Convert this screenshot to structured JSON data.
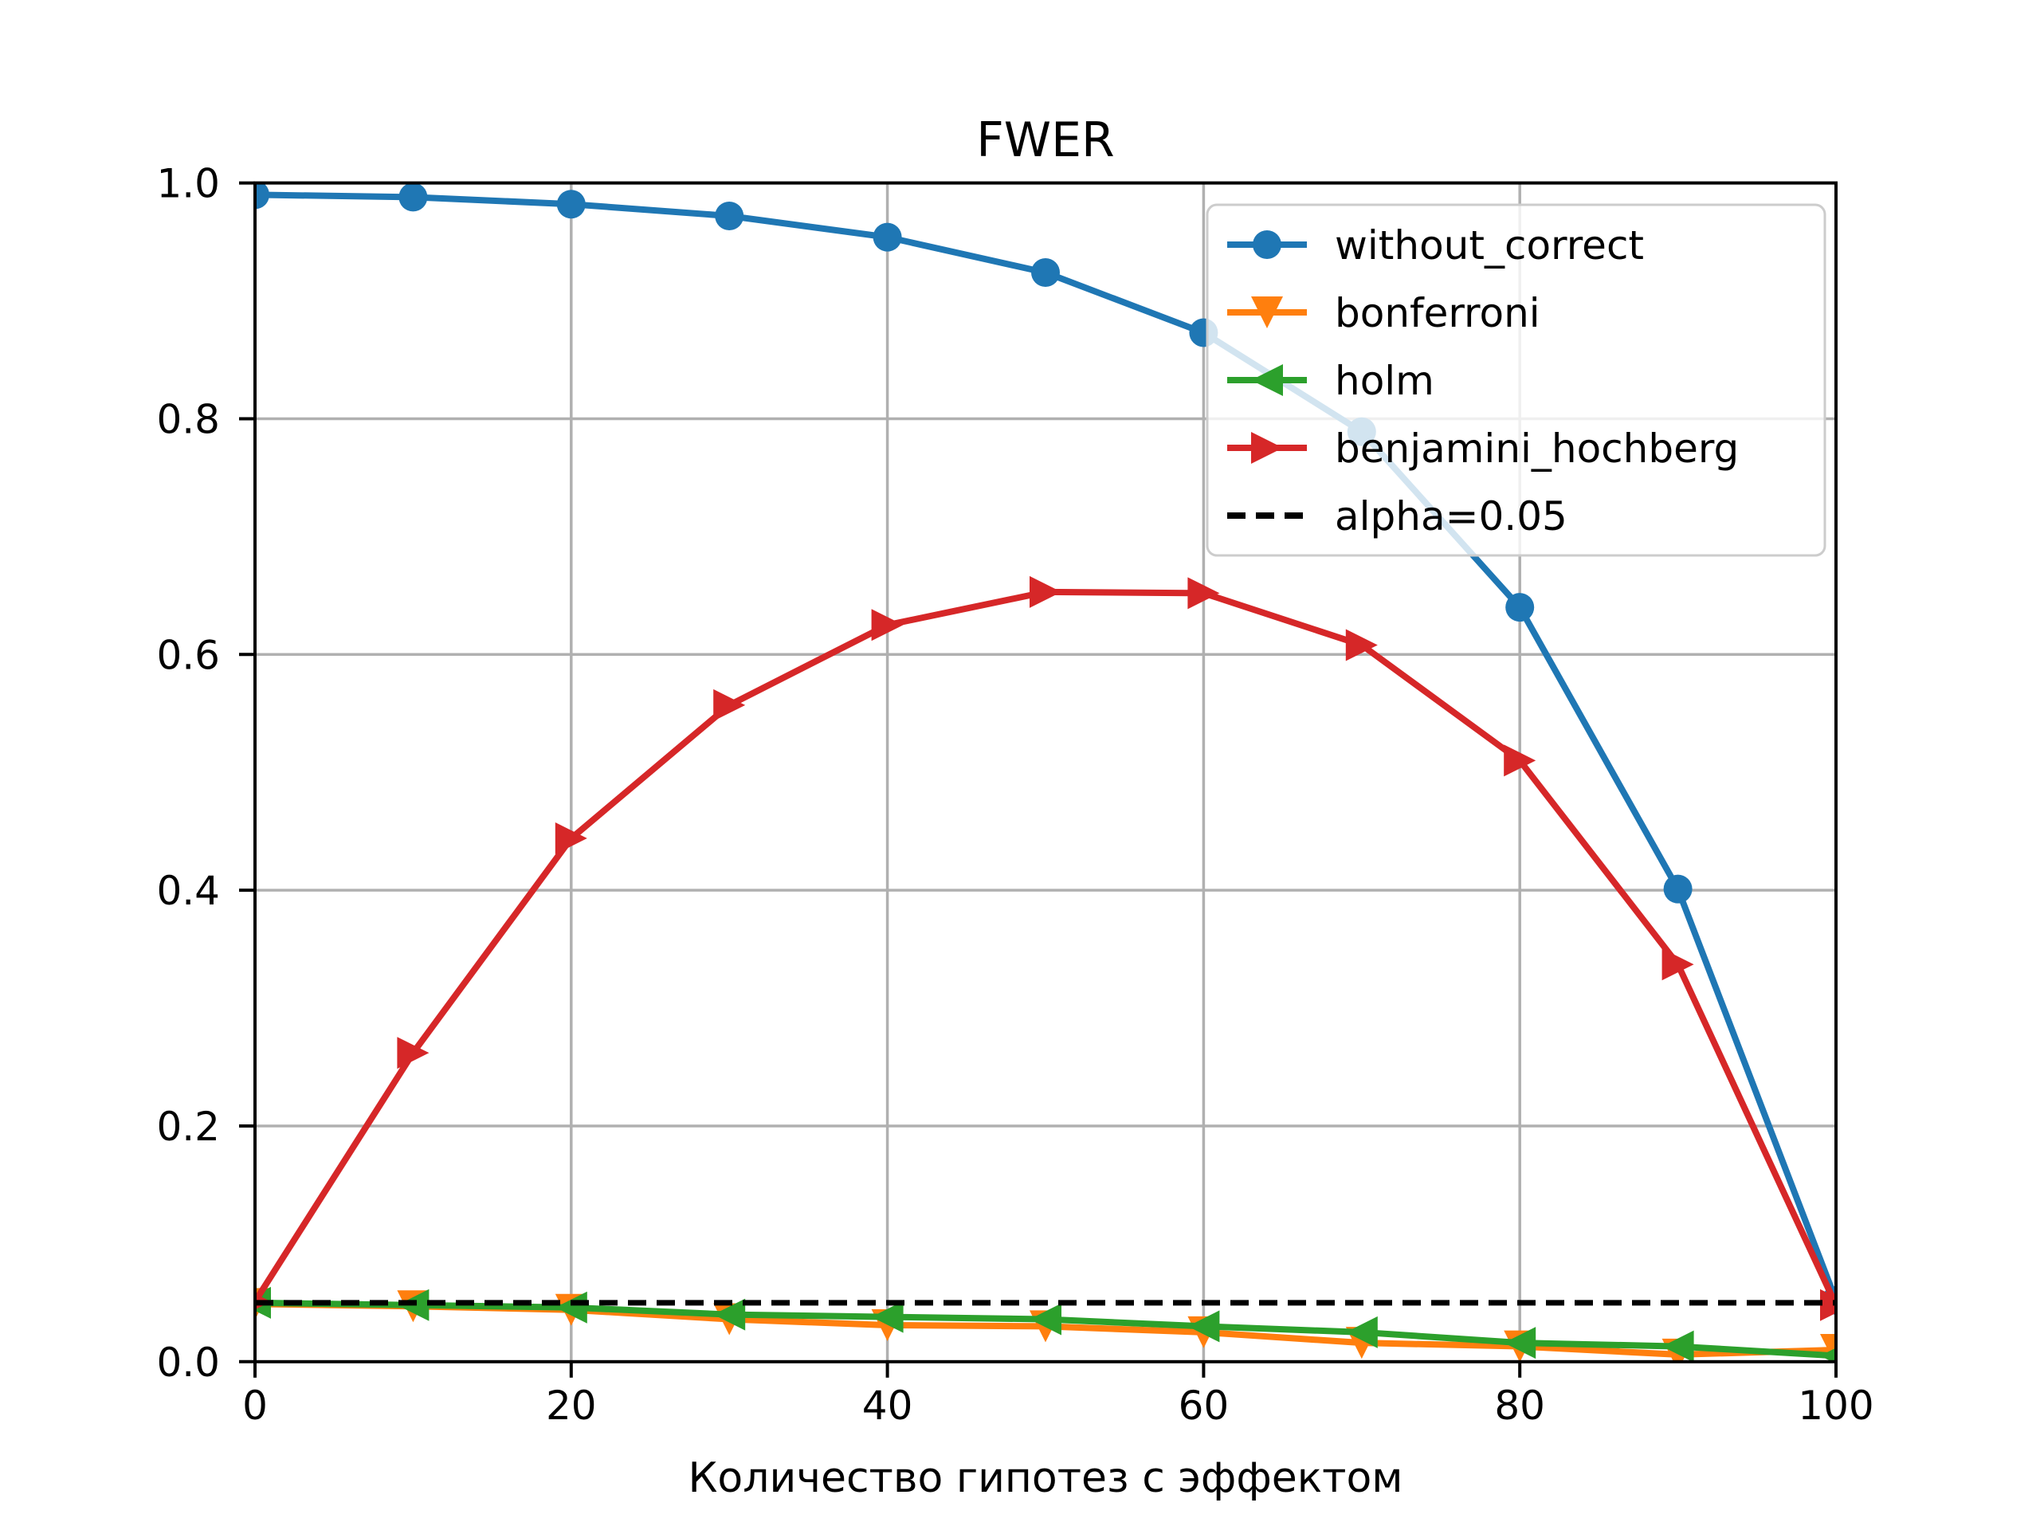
{
  "chart_data": {
    "type": "line",
    "title": "FWER",
    "xlabel": "Количество гипотез с эффектом",
    "ylabel": "",
    "xlim": [
      0,
      100
    ],
    "ylim": [
      0.0,
      1.0
    ],
    "xticks": [
      0,
      20,
      40,
      60,
      80,
      100
    ],
    "xtick_labels": [
      "0",
      "20",
      "40",
      "60",
      "80",
      "100"
    ],
    "yticks": [
      0.0,
      0.2,
      0.4,
      0.6,
      0.8,
      1.0
    ],
    "ytick_labels": [
      "0.0",
      "0.2",
      "0.4",
      "0.6",
      "0.8",
      "1.0"
    ],
    "grid": true,
    "grid_color": "#b0b0b0",
    "legend_position": "upper right",
    "x": [
      0,
      10,
      20,
      30,
      40,
      50,
      60,
      70,
      80,
      90,
      100
    ],
    "series": [
      {
        "name": "without_correct",
        "color": "#1f77b4",
        "marker": "circle",
        "line_style": "solid",
        "values": [
          0.99,
          0.988,
          0.982,
          0.972,
          0.954,
          0.924,
          0.873,
          0.789,
          0.64,
          0.401,
          0.052
        ]
      },
      {
        "name": "bonferroni",
        "color": "#ff7f0e",
        "marker": "triangle-down",
        "line_style": "solid",
        "values": [
          0.049,
          0.047,
          0.044,
          0.036,
          0.031,
          0.03,
          0.025,
          0.016,
          0.013,
          0.006,
          0.01
        ]
      },
      {
        "name": "holm",
        "color": "#2ca02c",
        "marker": "triangle-left",
        "line_style": "solid",
        "values": [
          0.05,
          0.048,
          0.046,
          0.04,
          0.038,
          0.036,
          0.03,
          0.025,
          0.016,
          0.013,
          0.005
        ]
      },
      {
        "name": "benjamini_hochberg",
        "color": "#d62728",
        "marker": "triangle-right",
        "line_style": "solid",
        "values": [
          0.051,
          0.262,
          0.444,
          0.557,
          0.625,
          0.653,
          0.652,
          0.608,
          0.51,
          0.337,
          0.048
        ]
      }
    ],
    "reference_line": {
      "label": "alpha=0.05",
      "value": 0.05,
      "color": "#000000",
      "line_style": "dashed"
    },
    "legend_labels": [
      "without_correct",
      "bonferroni",
      "holm",
      "benjamini_hochberg",
      "alpha=0.05"
    ]
  }
}
